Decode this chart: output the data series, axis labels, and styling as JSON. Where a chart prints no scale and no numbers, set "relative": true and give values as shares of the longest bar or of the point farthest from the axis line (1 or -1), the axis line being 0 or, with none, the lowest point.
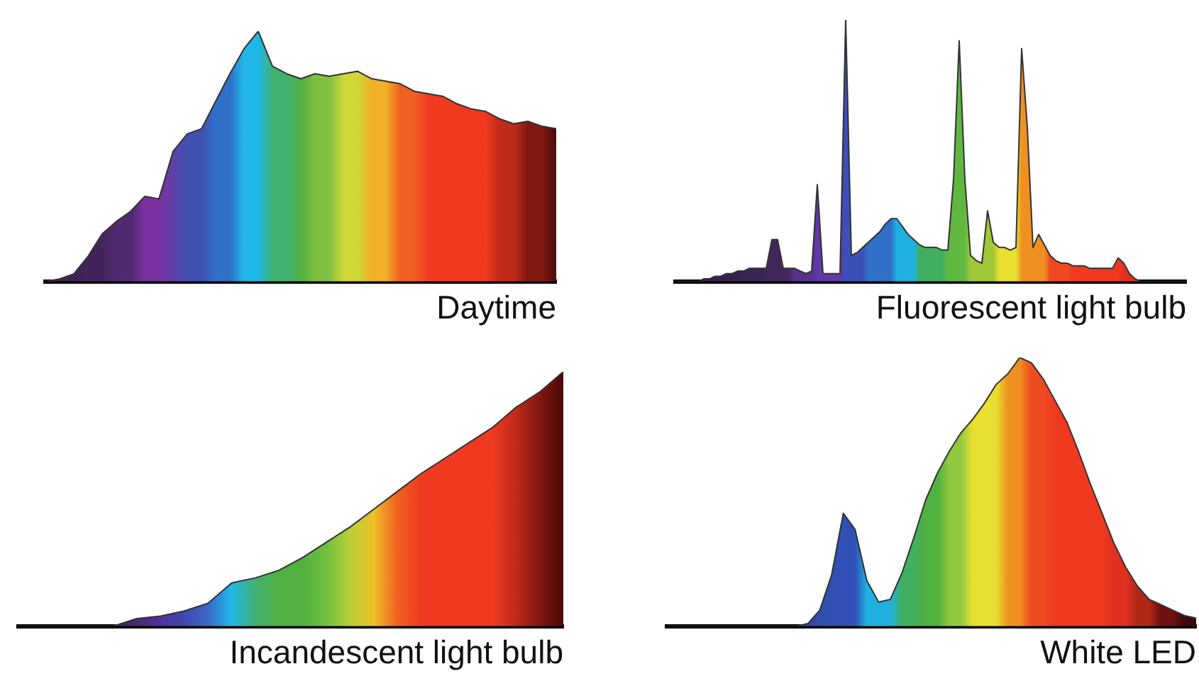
{
  "chart_data": [
    {
      "type": "area",
      "relative": true,
      "xlabel": "Daytime",
      "categories": [
        null,
        null,
        null,
        null,
        null,
        null,
        null,
        null,
        null,
        null,
        null,
        null,
        null,
        null,
        null,
        null,
        null,
        null,
        null,
        null,
        null,
        null,
        null,
        null,
        null,
        null,
        null,
        null,
        null,
        null,
        null,
        null,
        null,
        null,
        null,
        null,
        null
      ],
      "series": [
        {
          "color": "#333333",
          "colors": [
            "#3a2050",
            "#3e2255",
            "#3e2255",
            "#42245a",
            "#42245a",
            "#502a70",
            "#502a70",
            "#7a30a0",
            "#7a30a0",
            "#6040a8",
            "#4050b0",
            "#4050b0",
            "#3070c8",
            "#3070c8",
            "#20b8e8",
            "#20b8e8",
            "#40b070",
            "#40b070",
            "#50b040",
            "#80c040",
            "#80c040",
            "#d0d838",
            "#d0d838",
            "#f0b028",
            "#f0b028",
            "#f06020",
            "#f06020",
            "#f03a20",
            "#f03a20",
            "#f03a20",
            "#f03a20",
            "#f03a20",
            "#c02a1a",
            "#c02a1a",
            "#801810",
            "#801810",
            "#4a0c0c"
          ],
          "values": [
            0,
            0.01,
            0.03,
            0.1,
            0.19,
            0.24,
            0.28,
            0.34,
            0.33,
            0.52,
            0.59,
            0.61,
            0.72,
            0.83,
            0.93,
            1,
            0.86,
            0.83,
            0.81,
            0.83,
            0.82,
            0.83,
            0.84,
            0.81,
            0.8,
            0.79,
            0.76,
            0.75,
            0.74,
            0.71,
            0.69,
            0.68,
            0.65,
            0.63,
            0.64,
            0.62,
            0.61
          ]
        }
      ]
    },
    {
      "type": "area",
      "relative": true,
      "xlabel": "Fluorescent light bulb",
      "categories": [
        null,
        null,
        null,
        null,
        null,
        null,
        null,
        null,
        null,
        null,
        null,
        null,
        null,
        null,
        null,
        null,
        null,
        null,
        null,
        null,
        null,
        null,
        null,
        null,
        null,
        null,
        null,
        null,
        null,
        null,
        null,
        null,
        null,
        null,
        null,
        null,
        null,
        null,
        null,
        null,
        null,
        null,
        null,
        null,
        null,
        null,
        null,
        null,
        null,
        null,
        null,
        null,
        null,
        null,
        null,
        null,
        null,
        null,
        null,
        null,
        null,
        null,
        null,
        null,
        null,
        null,
        null,
        null,
        null,
        null,
        null,
        null,
        null,
        null,
        null,
        null,
        null,
        null,
        null,
        null,
        null,
        null,
        null,
        null,
        null,
        null,
        null,
        null,
        null,
        null,
        null
      ],
      "series": [
        {
          "color": "#333333",
          "colors": [
            "#2a1a40",
            "#2a1a40",
            "#2a1a40",
            "#30204a",
            "#30204a",
            "#30204a",
            "#30204a",
            "#352250",
            "#352250",
            "#352250",
            "#352250",
            "#352250",
            "#3a2555",
            "#3a2555",
            "#3a2555",
            "#3a2555",
            "#40285a",
            "#40285a",
            "#40285a",
            "#40285a",
            "#40285a",
            "#5a3090",
            "#5a3090",
            "#5a3090",
            "#5a3090",
            "#6038a8",
            "#6038a8",
            "#6038a8",
            "#6038a8",
            "#6038a8",
            "#3a50b8",
            "#3a50b8",
            "#3a50b8",
            "#3a50b8",
            "#3070c8",
            "#3070c8",
            "#3070c8",
            "#3070c8",
            "#3070c8",
            "#20b0e0",
            "#20b0e0",
            "#20b0e0",
            "#20b0e0",
            "#40b060",
            "#40b060",
            "#40b060",
            "#40b060",
            "#40b060",
            "#60b840",
            "#60b840",
            "#60b840",
            "#60b840",
            "#a0c838",
            "#a0c838",
            "#a0c838",
            "#a0c838",
            "#a0c838",
            "#e8e030",
            "#e8e030",
            "#e8e030",
            "#e8e030",
            "#f09020",
            "#f09020",
            "#f09020",
            "#f09020",
            "#f09020",
            "#f04a20",
            "#f04a20",
            "#f04a20",
            "#f04a20",
            "#f03a20",
            "#f03a20",
            "#f03a20",
            "#f03a20",
            "#f03a20",
            "#f03a20",
            "#f03a20",
            "#f03a20",
            "#f03a20",
            "#e03020",
            "#e03020",
            "#e03020",
            "#e03020",
            "#e03020",
            "#902018",
            "#902018",
            "#902018",
            "#902018",
            "#300808",
            "#300808",
            "#300808"
          ],
          "values": [
            0,
            0,
            0,
            0,
            0,
            0.01,
            0.01,
            0.02,
            0.02,
            0.03,
            0.03,
            0.04,
            0.04,
            0.05,
            0.05,
            0.05,
            0.05,
            0.16,
            0.16,
            0.05,
            0.05,
            0.05,
            0.04,
            0.03,
            0.04,
            0.37,
            0.03,
            0.03,
            0.03,
            0.03,
            1,
            0.1,
            0.11,
            0.13,
            0.15,
            0.17,
            0.19,
            0.22,
            0.24,
            0.24,
            0.21,
            0.18,
            0.16,
            0.14,
            0.13,
            0.13,
            0.13,
            0.12,
            0.12,
            0.39,
            0.92,
            0.39,
            0.1,
            0.08,
            0.07,
            0.27,
            0.15,
            0.13,
            0.13,
            0.12,
            0.13,
            0.89,
            0.59,
            0.13,
            0.18,
            0.14,
            0.1,
            0.08,
            0.07,
            0.07,
            0.06,
            0.06,
            0.06,
            0.05,
            0.05,
            0.05,
            0.05,
            0.05,
            0.09,
            0.07,
            0.03,
            0.01,
            0,
            0,
            0,
            0,
            0,
            0,
            0,
            0,
            0
          ]
        }
      ]
    },
    {
      "type": "area",
      "relative": true,
      "xlabel": "Incandescent light bulb",
      "categories": [
        null,
        null,
        null,
        null,
        null,
        null,
        null,
        null,
        null,
        null,
        null,
        null,
        null,
        null,
        null,
        null,
        null,
        null,
        null,
        null,
        null,
        null,
        null,
        null
      ],
      "series": [
        {
          "color": "#333333",
          "colors": [
            "#3a2050",
            "#3a2050",
            "#3a2050",
            "#3a2050",
            "#3a2050",
            "#4a2a70",
            "#5030a0",
            "#4048b0",
            "#3868c8",
            "#20b8e8",
            "#40b070",
            "#50b040",
            "#50b040",
            "#70c040",
            "#b8d038",
            "#f0c028",
            "#f06020",
            "#f03a20",
            "#f03a20",
            "#f03a20",
            "#f03a20",
            "#c02a1a",
            "#801810",
            "#4a0808"
          ],
          "values": [
            0,
            0,
            0,
            0,
            0,
            0.03,
            0.04,
            0.06,
            0.09,
            0.17,
            0.19,
            0.22,
            0.27,
            0.33,
            0.39,
            0.46,
            0.53,
            0.6,
            0.66,
            0.72,
            0.78,
            0.86,
            0.92,
            1
          ]
        }
      ]
    },
    {
      "type": "area",
      "relative": true,
      "xlabel": "White LED",
      "categories": [
        null,
        null,
        null,
        null,
        null,
        null,
        null,
        null,
        null,
        null,
        null,
        null,
        null,
        null,
        null,
        null,
        null,
        null,
        null,
        null,
        null,
        null,
        null,
        null,
        null,
        null,
        null,
        null,
        null,
        null,
        null,
        null,
        null,
        null,
        null,
        null,
        null,
        null,
        null,
        null,
        null,
        null,
        null,
        null,
        null,
        null
      ],
      "series": [
        {
          "color": "#333333",
          "colors": [
            "#3a3a90",
            "#3a3a90",
            "#3a3a90",
            "#3a3a90",
            "#3a3a90",
            "#3a3a90",
            "#3a3a90",
            "#3a3a90",
            "#3a3a90",
            "#3a3a90",
            "#3a3a90",
            "#3a40a0",
            "#3a40a0",
            "#3050b0",
            "#3050b0",
            "#3050b8",
            "#3050b8",
            "#20b0e0",
            "#20b0e0",
            "#20b0e0",
            "#40b060",
            "#40b060",
            "#50b040",
            "#50b040",
            "#90c840",
            "#90c840",
            "#e8e030",
            "#e8e030",
            "#e8e030",
            "#f09020",
            "#f09020",
            "#f04a20",
            "#f04a20",
            "#f03a20",
            "#f03a20",
            "#f03a20",
            "#f03a20",
            "#f03a20",
            "#e03020",
            "#e03020",
            "#b02818",
            "#b02818",
            "#701010",
            "#701010",
            "#400808",
            "#400808"
          ],
          "values": [
            0,
            0,
            0,
            0,
            0,
            0,
            0,
            0,
            0,
            0,
            0,
            0,
            0.01,
            0.06,
            0.19,
            0.42,
            0.36,
            0.17,
            0.09,
            0.1,
            0.2,
            0.33,
            0.47,
            0.57,
            0.65,
            0.72,
            0.77,
            0.83,
            0.9,
            0.94,
            1,
            0.98,
            0.92,
            0.84,
            0.76,
            0.65,
            0.53,
            0.42,
            0.31,
            0.22,
            0.15,
            0.1,
            0.08,
            0.06,
            0.04,
            0.03
          ]
        }
      ]
    }
  ]
}
